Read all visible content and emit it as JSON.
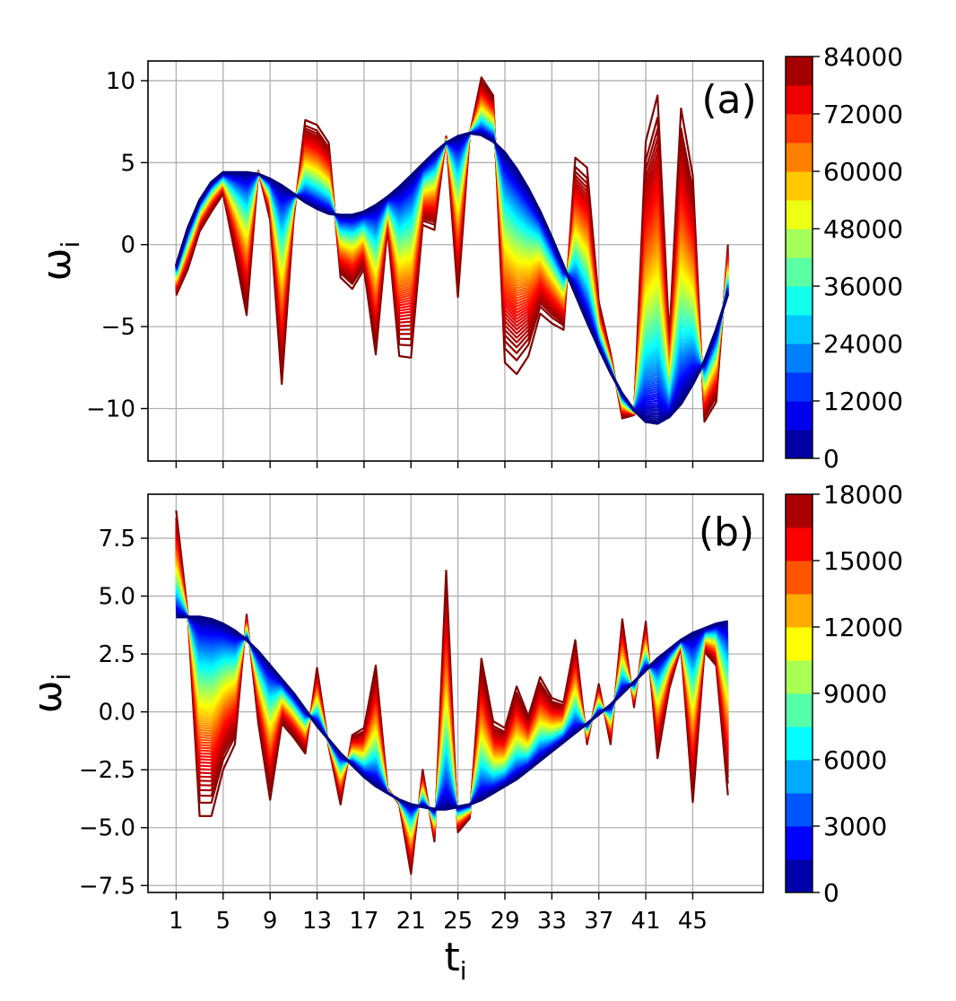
{
  "chart_data": [
    {
      "type": "line",
      "panel_label": "(a)",
      "ylabel": "ω",
      "ylabel_sub": "i",
      "xlabel": "",
      "ylim": [
        -13.2,
        11.2
      ],
      "yticks": [
        {
          "value": 10,
          "label": "10"
        },
        {
          "value": 5,
          "label": "5"
        },
        {
          "value": 0,
          "label": "0"
        },
        {
          "value": -5,
          "label": "−5"
        },
        {
          "value": -10,
          "label": "−10"
        }
      ],
      "xlim": [
        -1.4,
        51.0
      ],
      "x": [
        1,
        2,
        3,
        4,
        5,
        6,
        7,
        8,
        9,
        10,
        11,
        12,
        13,
        14,
        15,
        16,
        17,
        18,
        19,
        20,
        21,
        22,
        23,
        24,
        25,
        26,
        27,
        28,
        29,
        30,
        31,
        32,
        33,
        34,
        35,
        36,
        37,
        38,
        39,
        40,
        41,
        42,
        43,
        44,
        45,
        46,
        47,
        48
      ],
      "initial_values": [
        -3.1,
        -1.5,
        0.8,
        2.0,
        3.1,
        -0.5,
        -4.3,
        4.5,
        1.5,
        -8.5,
        1.5,
        7.6,
        7.3,
        6.2,
        -2.0,
        -2.7,
        -1.5,
        -6.7,
        1.0,
        -6.8,
        -6.9,
        1.2,
        0.9,
        6.6,
        -3.2,
        6.7,
        10.2,
        9.1,
        -7.2,
        -7.9,
        -6.8,
        -4.2,
        -4.8,
        -5.2,
        5.3,
        4.7,
        -3.5,
        -6.6,
        -10.6,
        -10.4,
        6.3,
        9.1,
        -5.7,
        8.3,
        4.2,
        -10.8,
        -9.6,
        0.0
      ],
      "final_values": [
        -1.3,
        1.0,
        2.7,
        3.8,
        4.4,
        4.4,
        4.4,
        4.3,
        4.0,
        3.6,
        3.1,
        2.6,
        2.2,
        1.9,
        1.8,
        1.8,
        2.0,
        2.4,
        2.9,
        3.5,
        4.2,
        4.9,
        5.6,
        6.2,
        6.6,
        6.8,
        6.7,
        6.3,
        5.6,
        4.6,
        3.4,
        2.0,
        0.4,
        -1.3,
        -3.0,
        -4.7,
        -6.3,
        -7.8,
        -9.1,
        -10.1,
        -10.8,
        -10.9,
        -10.5,
        -9.7,
        -8.5,
        -7.1,
        -5.2,
        -3.0
      ],
      "colorbar": {
        "label": "",
        "min": 0,
        "max": 84000,
        "ticks": [
          "0",
          "12000",
          "24000",
          "36000",
          "48000",
          "60000",
          "72000",
          "84000"
        ]
      }
    },
    {
      "type": "line",
      "panel_label": "(b)",
      "ylabel": "ω",
      "ylabel_sub": "i",
      "xlabel": "t",
      "xlabel_sub": "i",
      "ylim": [
        -7.8,
        9.4
      ],
      "yticks": [
        {
          "value": 7.5,
          "label": "7.5"
        },
        {
          "value": 5.0,
          "label": "5.0"
        },
        {
          "value": 2.5,
          "label": "2.5"
        },
        {
          "value": 0.0,
          "label": "0.0"
        },
        {
          "value": -2.5,
          "label": "−2.5"
        },
        {
          "value": -5.0,
          "label": "−5.0"
        },
        {
          "value": -7.5,
          "label": "−7.5"
        }
      ],
      "xlim": [
        -1.4,
        51.0
      ],
      "xticks": [
        "1",
        "5",
        "9",
        "13",
        "17",
        "21",
        "25",
        "29",
        "33",
        "37",
        "41",
        "45"
      ],
      "x": [
        1,
        2,
        3,
        4,
        5,
        6,
        7,
        8,
        9,
        10,
        11,
        12,
        13,
        14,
        15,
        16,
        17,
        18,
        19,
        20,
        21,
        22,
        23,
        24,
        25,
        26,
        27,
        28,
        29,
        30,
        31,
        32,
        33,
        34,
        35,
        36,
        37,
        38,
        39,
        40,
        41,
        42,
        43,
        44,
        45,
        46,
        47,
        48
      ],
      "initial_values": [
        8.7,
        4.2,
        -4.5,
        -4.5,
        -2.5,
        -1.4,
        4.2,
        -0.5,
        -3.8,
        -0.5,
        -1.1,
        -1.8,
        1.9,
        -1.5,
        -4.0,
        -1.0,
        -0.7,
        2.0,
        -3.3,
        -4.0,
        -7.0,
        -2.5,
        -5.6,
        6.1,
        -5.2,
        -4.6,
        2.3,
        -0.4,
        -0.7,
        1.1,
        -0.2,
        1.5,
        0.6,
        0.4,
        3.1,
        -1.4,
        1.2,
        -1.4,
        4.0,
        0.2,
        3.9,
        -2.0,
        1.0,
        2.8,
        -3.9,
        2.6,
        2.0,
        -3.6
      ],
      "final_values": [
        4.1,
        4.1,
        4.1,
        4.0,
        3.8,
        3.5,
        3.1,
        2.6,
        2.0,
        1.4,
        0.8,
        0.1,
        -0.6,
        -1.2,
        -1.8,
        -2.3,
        -2.8,
        -3.2,
        -3.5,
        -3.8,
        -4.0,
        -4.1,
        -4.2,
        -4.2,
        -4.1,
        -4.0,
        -3.8,
        -3.5,
        -3.2,
        -2.9,
        -2.5,
        -2.1,
        -1.7,
        -1.3,
        -0.9,
        -0.5,
        -0.1,
        0.3,
        0.8,
        1.3,
        1.8,
        2.3,
        2.7,
        3.1,
        3.4,
        3.6,
        3.8,
        3.9
      ],
      "colorbar": {
        "label": "",
        "min": 0,
        "max": 18000,
        "ticks": [
          "0",
          "3000",
          "6000",
          "9000",
          "12000",
          "15000",
          "18000"
        ]
      }
    }
  ]
}
